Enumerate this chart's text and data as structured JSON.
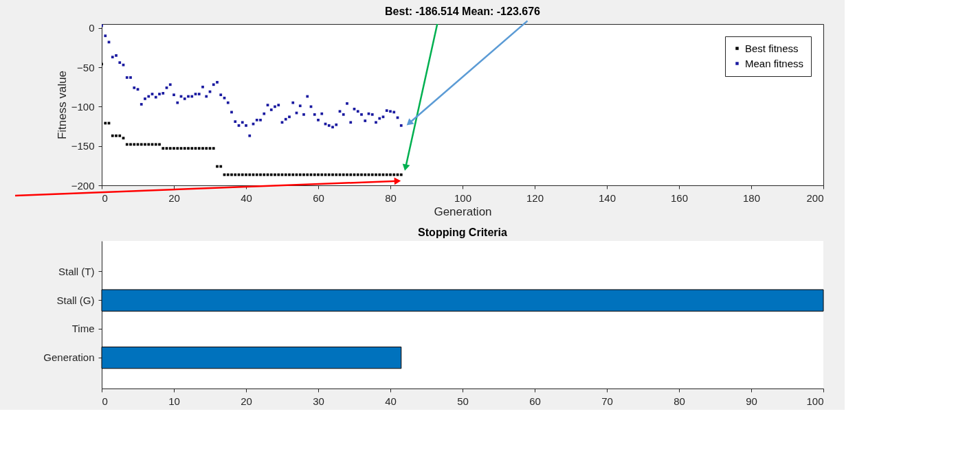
{
  "chart_data": [
    {
      "type": "scatter",
      "title": "Best: -186.514 Mean: -123.676",
      "xlabel": "Generation",
      "ylabel": "Fitness value",
      "x": [
        0,
        1,
        2,
        3,
        4,
        5,
        6,
        7,
        8,
        9,
        10,
        11,
        12,
        13,
        14,
        15,
        16,
        17,
        18,
        19,
        20,
        21,
        22,
        23,
        24,
        25,
        26,
        27,
        28,
        29,
        30,
        31,
        32,
        33,
        34,
        35,
        36,
        37,
        38,
        39,
        40,
        41,
        42,
        43,
        44,
        45,
        46,
        47,
        48,
        49,
        50,
        51,
        52,
        53,
        54,
        55,
        56,
        57,
        58,
        59,
        60,
        61,
        62,
        63,
        64,
        65,
        66,
        67,
        68,
        69,
        70,
        71,
        72,
        73,
        74,
        75,
        76,
        77,
        78,
        79,
        80,
        81,
        82,
        83
      ],
      "series": [
        {
          "name": "Best fitness",
          "color": "#000000",
          "values": [
            -46,
            -121,
            -121,
            -137,
            -137,
            -137,
            -140,
            -148,
            -148,
            -148,
            -148,
            -148,
            -148,
            -148,
            -148,
            -148,
            -148,
            -153,
            -153,
            -153,
            -153,
            -153,
            -153,
            -153,
            -153,
            -153,
            -153,
            -153,
            -153,
            -153,
            -153,
            -153,
            -176,
            -176,
            -186.5,
            -186.5,
            -186.5,
            -186.5,
            -186.5,
            -186.5,
            -186.5,
            -186.5,
            -186.5,
            -186.5,
            -186.5,
            -186.5,
            -186.5,
            -186.5,
            -186.5,
            -186.5,
            -186.5,
            -186.5,
            -186.5,
            -186.5,
            -186.5,
            -186.5,
            -186.5,
            -186.5,
            -186.5,
            -186.5,
            -186.5,
            -186.5,
            -186.5,
            -186.5,
            -186.5,
            -186.5,
            -186.5,
            -186.5,
            -186.5,
            -186.5,
            -186.5,
            -186.5,
            -186.5,
            -186.5,
            -186.5,
            -186.5,
            -186.5,
            -186.5,
            -186.5,
            -186.5,
            -186.5,
            -186.5,
            -186.5,
            -186.5
          ]
        },
        {
          "name": "Mean fitness",
          "color": "#1a1aa0",
          "values": [
            3,
            -10,
            -18,
            -37,
            -35,
            -44,
            -47,
            -63,
            -63,
            -76,
            -78,
            -97,
            -90,
            -87,
            -84,
            -88,
            -84,
            -83,
            -76,
            -72,
            -85,
            -95,
            -87,
            -90,
            -87,
            -87,
            -84,
            -84,
            -75,
            -87,
            -81,
            -72,
            -69,
            -85,
            -89,
            -95,
            -107,
            -119,
            -124,
            -120,
            -124,
            -137,
            -122,
            -117,
            -117,
            -109,
            -98,
            -104,
            -100,
            -98,
            -120,
            -116,
            -113,
            -95,
            -108,
            -99,
            -110,
            -87,
            -100,
            -110,
            -117,
            -109,
            -122,
            -124,
            -126,
            -123,
            -106,
            -110,
            -96,
            -120,
            -103,
            -106,
            -110,
            -118,
            -109,
            -110,
            -120,
            -115,
            -113,
            -105,
            -106,
            -107,
            -114,
            -124
          ]
        }
      ],
      "xlim": [
        0,
        200
      ],
      "ylim": [
        -200,
        5
      ],
      "xticks": [
        0,
        20,
        40,
        60,
        80,
        100,
        120,
        140,
        160,
        180,
        200
      ],
      "yticks": [
        -200,
        -150,
        -100,
        -50,
        0
      ],
      "legend": "top right",
      "marker": "square"
    },
    {
      "type": "bar",
      "orientation": "horizontal",
      "title": "Stopping Criteria",
      "categories": [
        "Stall (T)",
        "Stall (G)",
        "Time",
        "Generation"
      ],
      "values": [
        0,
        100,
        0,
        41.5
      ],
      "color": "#0072bd",
      "xlim": [
        0,
        100
      ],
      "xticks": [
        0,
        10,
        20,
        30,
        40,
        50,
        60,
        70,
        80,
        90,
        100
      ]
    }
  ]
}
